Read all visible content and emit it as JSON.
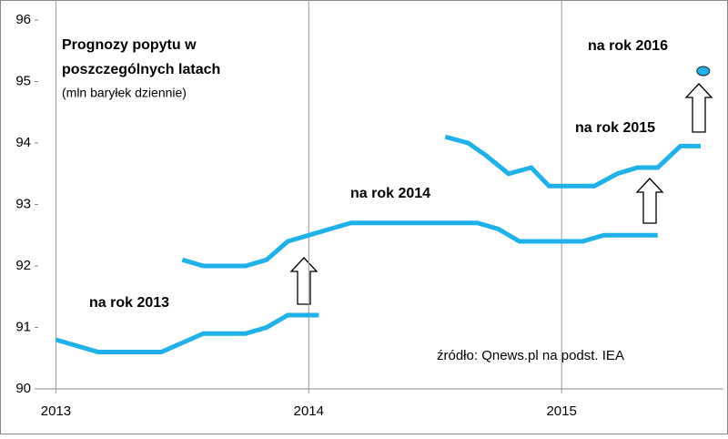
{
  "chart_data": {
    "type": "line",
    "title_lines": [
      "Prognozy popytu w",
      "poszczególnych latach"
    ],
    "subtitle": "(mln baryłek dziennie)",
    "source": "źródło: Qnews.pl na podst. IEA",
    "xlim": [
      2012.93,
      2015.64
    ],
    "xticks": [
      2013,
      2014,
      2015
    ],
    "ylim": [
      90,
      96
    ],
    "yticks": [
      90,
      91,
      92,
      93,
      94,
      95,
      96
    ],
    "grid": true,
    "series": [
      {
        "name": "na rok 2013",
        "color": "#1fb2ea",
        "x": [
          2013.0,
          2013.083,
          2013.167,
          2013.25,
          2013.333,
          2013.417,
          2013.5,
          2013.583,
          2013.667,
          2013.75,
          2013.833,
          2013.917,
          2014.0,
          2014.04
        ],
        "values": [
          90.8,
          90.7,
          90.6,
          90.6,
          90.6,
          90.6,
          90.75,
          90.9,
          90.9,
          90.9,
          91.0,
          91.2,
          91.2,
          91.2
        ]
      },
      {
        "name": "na rok 2014",
        "color": "#1fb2ea",
        "x": [
          2013.5,
          2013.583,
          2013.667,
          2013.75,
          2013.833,
          2013.917,
          2014.0,
          2014.083,
          2014.167,
          2014.25,
          2014.333,
          2014.417,
          2014.5,
          2014.583,
          2014.667,
          2014.75,
          2014.833,
          2014.917,
          2015.0,
          2015.083,
          2015.167,
          2015.25,
          2015.333,
          2015.38
        ],
        "values": [
          92.1,
          92.0,
          92.0,
          92.0,
          92.1,
          92.4,
          92.5,
          92.6,
          92.7,
          92.7,
          92.7,
          92.7,
          92.7,
          92.7,
          92.7,
          92.6,
          92.4,
          92.4,
          92.4,
          92.4,
          92.5,
          92.5,
          92.5,
          92.5
        ]
      },
      {
        "name": "na rok 2015",
        "color": "#1fb2ea",
        "x": [
          2014.54,
          2014.63,
          2014.7,
          2014.79,
          2014.88,
          2014.95,
          2015.04,
          2015.13,
          2015.22,
          2015.3,
          2015.38,
          2015.47,
          2015.55
        ],
        "values": [
          94.1,
          94.0,
          93.8,
          93.5,
          93.6,
          93.3,
          93.3,
          93.3,
          93.5,
          93.6,
          93.6,
          93.95,
          93.95
        ]
      },
      {
        "name": "na rok 2016",
        "color": "#1fb2ea",
        "marker": true,
        "x": [
          2015.56
        ],
        "values": [
          95.17
        ]
      }
    ]
  }
}
